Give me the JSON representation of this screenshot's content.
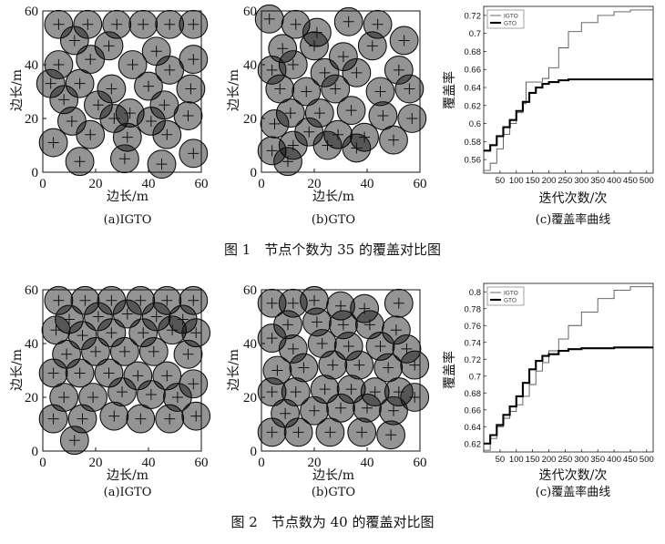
{
  "figure1": {
    "caption": "图 1　节点个数为 35 的覆盖对比图",
    "subcaptions": [
      "(a)IGTO",
      "(b)GTO",
      "(c)覆盖率曲线"
    ],
    "scatter_xlabel": "边长/m",
    "scatter_ylabel": "边长/m",
    "curve_xlabel": "迭代次数/次",
    "curve_ylabel": "覆盖率",
    "legend": [
      "IGTO",
      "GTO"
    ]
  },
  "figure2": {
    "caption": "图 2　节点数为 40 的覆盖对比图",
    "subcaptions": [
      "(a)IGTO",
      "(b)GTO",
      "(c)覆盖率曲线"
    ],
    "scatter_xlabel": "边长/m",
    "scatter_ylabel": "边长/m",
    "curve_xlabel": "迭代次数/次",
    "curve_ylabel": "覆盖率",
    "legend": [
      "IGTO",
      "GTO"
    ]
  },
  "chart_data": [
    {
      "type": "scatter",
      "figure": 1,
      "panel": "a",
      "xlim": [
        0,
        60
      ],
      "ylim": [
        0,
        60
      ],
      "xticks": [
        0,
        20,
        40,
        60
      ],
      "yticks": [
        0,
        20,
        40,
        60
      ],
      "points": [
        [
          6,
          55
        ],
        [
          17,
          55
        ],
        [
          28,
          55
        ],
        [
          38,
          55
        ],
        [
          48,
          55
        ],
        [
          57,
          55
        ],
        [
          12,
          49
        ],
        [
          25,
          47
        ],
        [
          43,
          45
        ],
        [
          57,
          42
        ],
        [
          6,
          40
        ],
        [
          18,
          42
        ],
        [
          34,
          40
        ],
        [
          48,
          38
        ],
        [
          3,
          33
        ],
        [
          14,
          33
        ],
        [
          26,
          31
        ],
        [
          40,
          32
        ],
        [
          56,
          31
        ],
        [
          8,
          27
        ],
        [
          21,
          25
        ],
        [
          33,
          22
        ],
        [
          46,
          25
        ],
        [
          55,
          21
        ],
        [
          11,
          19
        ],
        [
          27,
          20
        ],
        [
          41,
          19
        ],
        [
          4,
          11
        ],
        [
          18,
          14
        ],
        [
          32,
          13
        ],
        [
          47,
          14
        ],
        [
          57,
          7
        ],
        [
          14,
          4
        ],
        [
          31,
          5
        ],
        [
          45,
          3
        ]
      ]
    },
    {
      "type": "scatter",
      "figure": 1,
      "panel": "b",
      "xlim": [
        0,
        60
      ],
      "ylim": [
        0,
        60
      ],
      "xticks": [
        0,
        20,
        40,
        60
      ],
      "yticks": [
        0,
        20,
        40,
        60
      ],
      "points": [
        [
          3,
          57
        ],
        [
          13,
          55
        ],
        [
          21,
          52
        ],
        [
          33,
          56
        ],
        [
          44,
          55
        ],
        [
          54,
          49
        ],
        [
          8,
          46
        ],
        [
          20,
          47
        ],
        [
          31,
          43
        ],
        [
          42,
          47
        ],
        [
          12,
          40
        ],
        [
          24,
          37
        ],
        [
          4,
          38
        ],
        [
          36,
          37
        ],
        [
          52,
          38
        ],
        [
          7,
          31
        ],
        [
          17,
          30
        ],
        [
          28,
          31
        ],
        [
          45,
          30
        ],
        [
          56,
          31
        ],
        [
          11,
          22
        ],
        [
          22,
          22
        ],
        [
          34,
          23
        ],
        [
          46,
          21
        ],
        [
          57,
          20
        ],
        [
          5,
          18
        ],
        [
          18,
          15
        ],
        [
          29,
          14
        ],
        [
          39,
          13
        ],
        [
          50,
          12
        ],
        [
          4,
          8
        ],
        [
          12,
          10
        ],
        [
          25,
          10
        ],
        [
          36,
          9
        ],
        [
          10,
          4
        ]
      ]
    },
    {
      "type": "line",
      "figure": 1,
      "panel": "c",
      "xlabel": "迭代次数/次",
      "ylabel": "覆盖率",
      "xlim": [
        0,
        520
      ],
      "ylim": [
        0.545,
        0.73
      ],
      "xticks": [
        50,
        100,
        150,
        200,
        250,
        300,
        350,
        400,
        450,
        500
      ],
      "yticks": [
        0.56,
        0.58,
        0.6,
        0.62,
        0.64,
        0.66,
        0.68,
        0.7,
        0.72
      ],
      "series": [
        {
          "name": "IGTO",
          "x": [
            0,
            20,
            40,
            60,
            80,
            100,
            120,
            130,
            160,
            180,
            200,
            230,
            260,
            300,
            350,
            400,
            450,
            520
          ],
          "y": [
            0.548,
            0.556,
            0.572,
            0.588,
            0.6,
            0.612,
            0.622,
            0.646,
            0.646,
            0.65,
            0.662,
            0.684,
            0.702,
            0.712,
            0.72,
            0.724,
            0.726,
            0.727
          ]
        },
        {
          "name": "GTO",
          "x": [
            0,
            20,
            40,
            60,
            80,
            100,
            120,
            140,
            160,
            180,
            200,
            230,
            260,
            300,
            400,
            520
          ],
          "y": [
            0.57,
            0.576,
            0.586,
            0.596,
            0.604,
            0.614,
            0.624,
            0.634,
            0.64,
            0.644,
            0.646,
            0.648,
            0.649,
            0.649,
            0.649,
            0.649
          ]
        }
      ]
    },
    {
      "type": "scatter",
      "figure": 2,
      "panel": "a",
      "xlim": [
        0,
        60
      ],
      "ylim": [
        0,
        60
      ],
      "xticks": [
        0,
        20,
        40,
        60
      ],
      "yticks": [
        0,
        20,
        40,
        60
      ],
      "points": [
        [
          6,
          56
        ],
        [
          16,
          56
        ],
        [
          26,
          56
        ],
        [
          37,
          56
        ],
        [
          47,
          56
        ],
        [
          57,
          56
        ],
        [
          10,
          49
        ],
        [
          21,
          50
        ],
        [
          32,
          51
        ],
        [
          43,
          50
        ],
        [
          53,
          49
        ],
        [
          5,
          45
        ],
        [
          15,
          43
        ],
        [
          26,
          44
        ],
        [
          38,
          44
        ],
        [
          49,
          45
        ],
        [
          58,
          44
        ],
        [
          9,
          36
        ],
        [
          20,
          37
        ],
        [
          31,
          37
        ],
        [
          42,
          37
        ],
        [
          55,
          36
        ],
        [
          4,
          29
        ],
        [
          14,
          29
        ],
        [
          25,
          29
        ],
        [
          36,
          28
        ],
        [
          47,
          28
        ],
        [
          57,
          25
        ],
        [
          8,
          20
        ],
        [
          19,
          20
        ],
        [
          30,
          22
        ],
        [
          41,
          21
        ],
        [
          51,
          20
        ],
        [
          4,
          12
        ],
        [
          15,
          12
        ],
        [
          27,
          13
        ],
        [
          37,
          12
        ],
        [
          48,
          12
        ],
        [
          58,
          13
        ],
        [
          12,
          4
        ]
      ]
    },
    {
      "type": "scatter",
      "figure": 2,
      "panel": "b",
      "xlim": [
        0,
        60
      ],
      "ylim": [
        0,
        60
      ],
      "xticks": [
        0,
        20,
        40,
        60
      ],
      "yticks": [
        0,
        20,
        40,
        60
      ],
      "points": [
        [
          4,
          55
        ],
        [
          12,
          55
        ],
        [
          20,
          56
        ],
        [
          30,
          54
        ],
        [
          39,
          53
        ],
        [
          52,
          55
        ],
        [
          10,
          47
        ],
        [
          21,
          48
        ],
        [
          31,
          47
        ],
        [
          41,
          47
        ],
        [
          51,
          45
        ],
        [
          4,
          42
        ],
        [
          12,
          38
        ],
        [
          23,
          40
        ],
        [
          33,
          39
        ],
        [
          45,
          39
        ],
        [
          55,
          38
        ],
        [
          6,
          30
        ],
        [
          16,
          31
        ],
        [
          27,
          32
        ],
        [
          37,
          32
        ],
        [
          48,
          31
        ],
        [
          58,
          32
        ],
        [
          4,
          22
        ],
        [
          13,
          22
        ],
        [
          24,
          23
        ],
        [
          34,
          23
        ],
        [
          43,
          22
        ],
        [
          52,
          22
        ],
        [
          58,
          20
        ],
        [
          9,
          14
        ],
        [
          20,
          15
        ],
        [
          30,
          16
        ],
        [
          40,
          16
        ],
        [
          50,
          15
        ],
        [
          4,
          7
        ],
        [
          14,
          7
        ],
        [
          26,
          7
        ],
        [
          38,
          7
        ],
        [
          49,
          6
        ]
      ]
    },
    {
      "type": "line",
      "figure": 2,
      "panel": "c",
      "xlabel": "迭代次数/次",
      "ylabel": "覆盖率",
      "xlim": [
        0,
        520
      ],
      "ylim": [
        0.61,
        0.81
      ],
      "xticks": [
        50,
        100,
        150,
        200,
        250,
        300,
        350,
        400,
        450,
        500
      ],
      "yticks": [
        0.62,
        0.64,
        0.66,
        0.68,
        0.7,
        0.72,
        0.74,
        0.76,
        0.78,
        0.8
      ],
      "series": [
        {
          "name": "IGTO",
          "x": [
            0,
            20,
            40,
            60,
            80,
            100,
            120,
            140,
            160,
            180,
            200,
            230,
            260,
            300,
            350,
            400,
            450,
            520
          ],
          "y": [
            0.612,
            0.626,
            0.64,
            0.65,
            0.658,
            0.666,
            0.676,
            0.69,
            0.706,
            0.716,
            0.73,
            0.744,
            0.76,
            0.776,
            0.792,
            0.802,
            0.806,
            0.808
          ]
        },
        {
          "name": "GTO",
          "x": [
            0,
            20,
            40,
            60,
            80,
            100,
            120,
            140,
            160,
            180,
            200,
            230,
            260,
            300,
            400,
            520
          ],
          "y": [
            0.62,
            0.63,
            0.642,
            0.654,
            0.664,
            0.676,
            0.692,
            0.708,
            0.718,
            0.724,
            0.726,
            0.73,
            0.732,
            0.733,
            0.734,
            0.734
          ]
        }
      ]
    }
  ]
}
